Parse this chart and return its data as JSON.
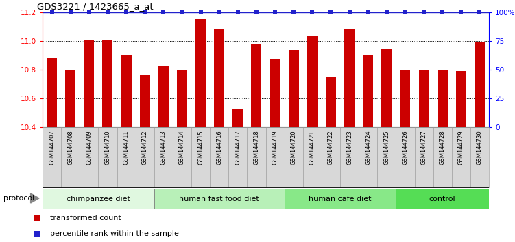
{
  "title": "GDS3221 / 1423665_a_at",
  "samples": [
    "GSM144707",
    "GSM144708",
    "GSM144709",
    "GSM144710",
    "GSM144711",
    "GSM144712",
    "GSM144713",
    "GSM144714",
    "GSM144715",
    "GSM144716",
    "GSM144717",
    "GSM144718",
    "GSM144719",
    "GSM144720",
    "GSM144721",
    "GSM144722",
    "GSM144723",
    "GSM144724",
    "GSM144725",
    "GSM144726",
    "GSM144727",
    "GSM144728",
    "GSM144729",
    "GSM144730"
  ],
  "values": [
    10.88,
    10.8,
    11.01,
    11.01,
    10.9,
    10.76,
    10.83,
    10.8,
    11.15,
    11.08,
    10.53,
    10.98,
    10.87,
    10.94,
    11.04,
    10.75,
    11.08,
    10.9,
    10.95,
    10.8,
    10.8,
    10.8,
    10.79,
    10.99
  ],
  "bar_color": "#cc0000",
  "dot_color": "#2222cc",
  "ylim": [
    10.4,
    11.2
  ],
  "yticks_left": [
    10.4,
    10.6,
    10.8,
    11.0,
    11.2
  ],
  "yticks_right": [
    0,
    25,
    50,
    75,
    100
  ],
  "ytick_labels_right": [
    "0",
    "25",
    "50",
    "75",
    "100%"
  ],
  "hgrid_lines": [
    10.6,
    10.8,
    11.0
  ],
  "groups": [
    {
      "label": "chimpanzee diet",
      "start": 0,
      "end": 6,
      "color": "#e0f8e0"
    },
    {
      "label": "human fast food diet",
      "start": 6,
      "end": 13,
      "color": "#b8f0b8"
    },
    {
      "label": "human cafe diet",
      "start": 13,
      "end": 19,
      "color": "#88e888"
    },
    {
      "label": "control",
      "start": 19,
      "end": 24,
      "color": "#55dd55"
    }
  ],
  "protocol_label": "protocol",
  "legend_red_label": "transformed count",
  "legend_blue_label": "percentile rank within the sample",
  "tick_bg_color": "#d8d8d8",
  "bar_bottom": 10.4
}
